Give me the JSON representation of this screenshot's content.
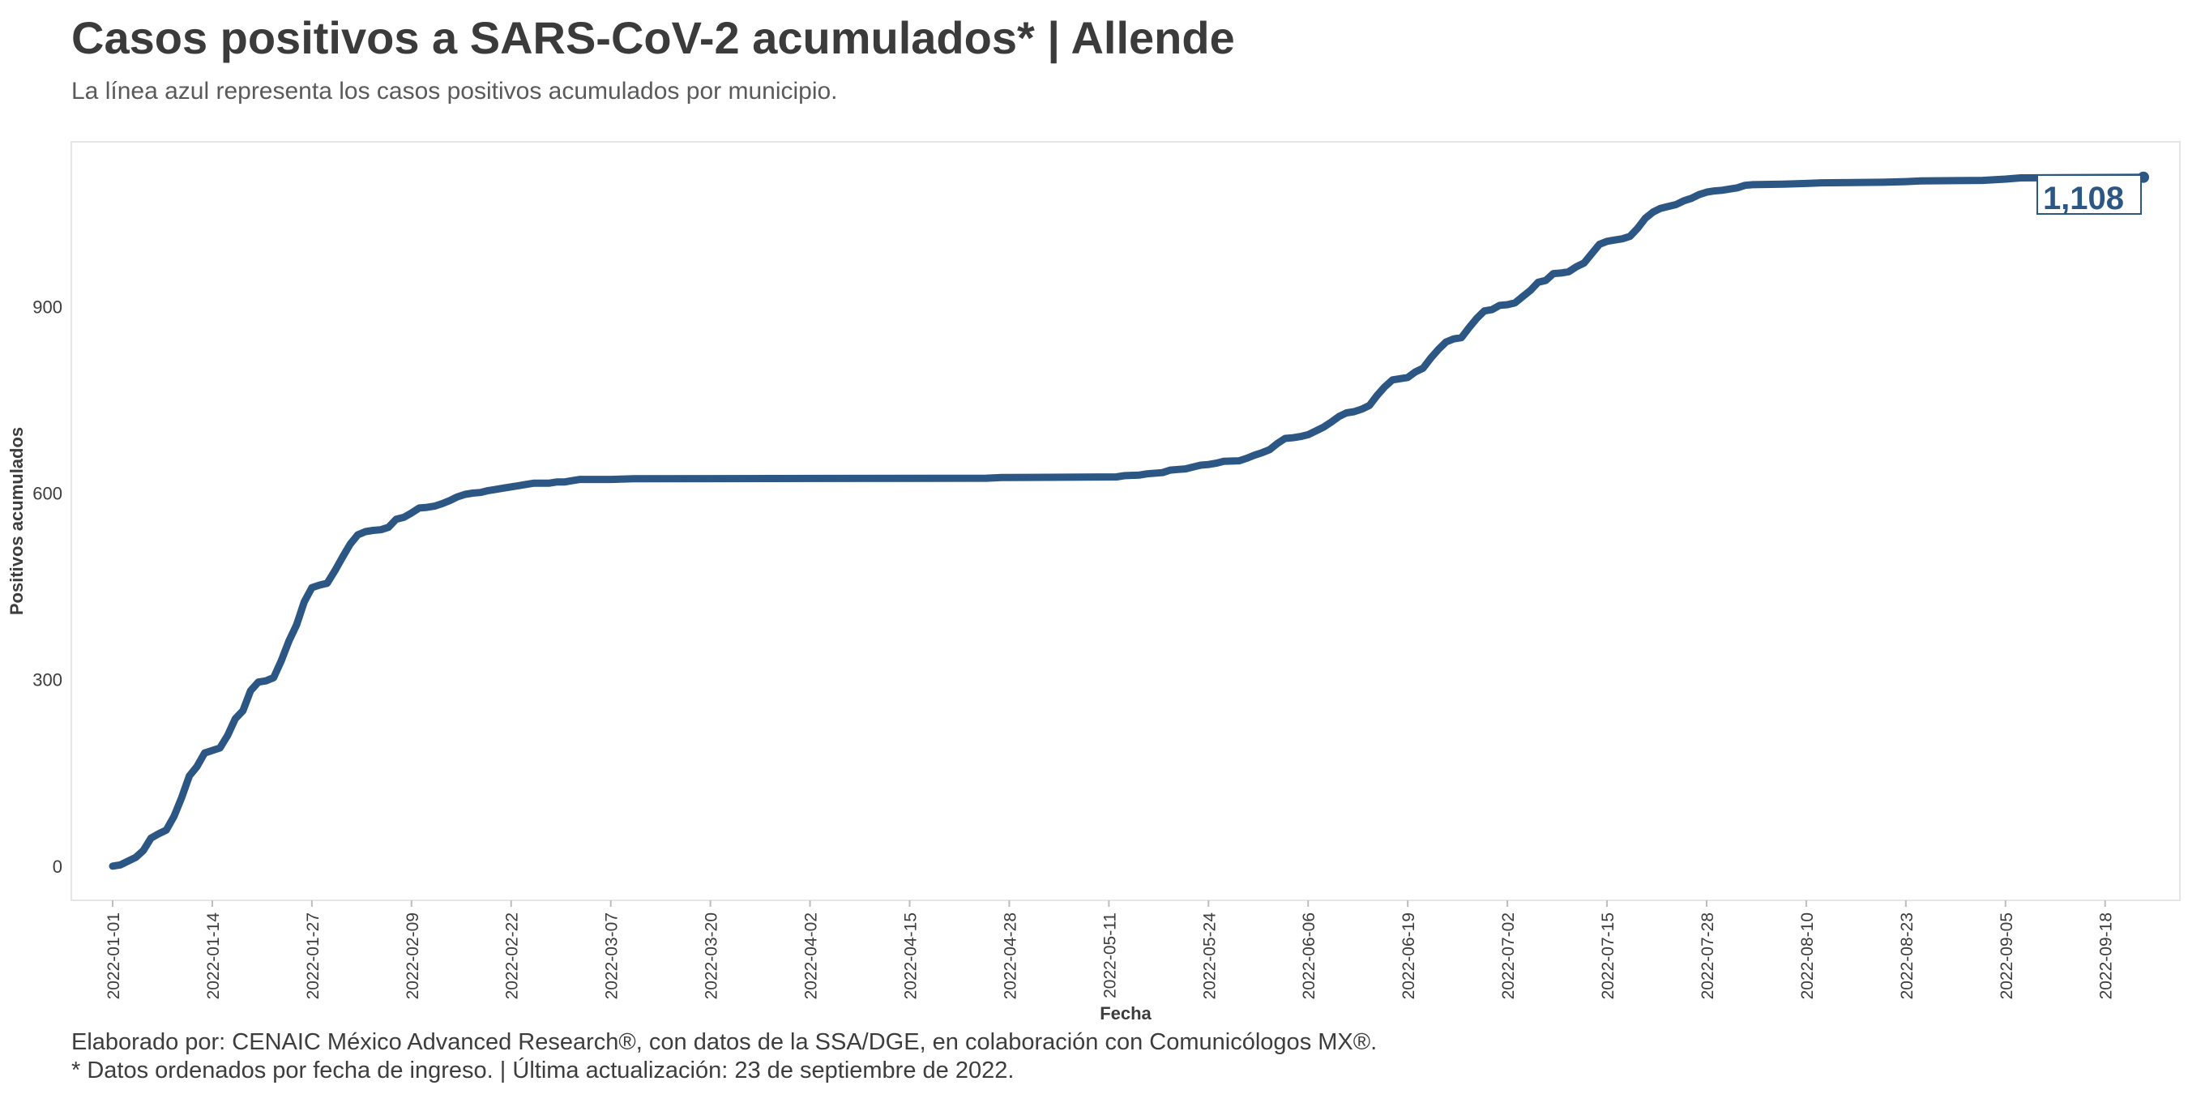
{
  "header": {
    "title": "Casos positivos a SARS-CoV-2 acumulados* | Allende",
    "subtitle": "La línea azul representa los casos positivos acumulados por municipio."
  },
  "footer": {
    "line1": "Elaborado por: CENAIC México Advanced Research®, con datos de la SSA/DGE, en colaboración con Comunicólogos MX®.",
    "line2": "* Datos ordenados por fecha de ingreso. | Última actualización: 23 de septiembre de 2022."
  },
  "colors": {
    "line": "#2c5784",
    "grid_border": "#e6e6e6",
    "text": "#3d3d3d"
  },
  "chart_data": {
    "type": "line",
    "xlabel": "Fecha",
    "ylabel": "Positivos acumulados",
    "x_start": "2022-01-01",
    "x_end": "2022-09-23",
    "ylim": [
      -55,
      1165
    ],
    "yticks": [
      0,
      300,
      600,
      900
    ],
    "ytick_labels": [
      "0",
      "300",
      "600",
      "900"
    ],
    "xticks": [
      "2022-01-01",
      "2022-01-14",
      "2022-01-27",
      "2022-02-09",
      "2022-02-22",
      "2022-03-07",
      "2022-03-20",
      "2022-04-02",
      "2022-04-15",
      "2022-04-28",
      "2022-05-11",
      "2022-05-24",
      "2022-06-06",
      "2022-06-19",
      "2022-07-02",
      "2022-07-15",
      "2022-07-28",
      "2022-08-10",
      "2022-08-23",
      "2022-09-05",
      "2022-09-18"
    ],
    "grid": false,
    "end_label": "1,108",
    "series": [
      {
        "values": [
          [
            "2022-01-01",
            0
          ],
          [
            "2022-01-02",
            2
          ],
          [
            "2022-01-03",
            8
          ],
          [
            "2022-01-04",
            14
          ],
          [
            "2022-01-05",
            25
          ],
          [
            "2022-01-06",
            45
          ],
          [
            "2022-01-07",
            52
          ],
          [
            "2022-01-08",
            58
          ],
          [
            "2022-01-09",
            80
          ],
          [
            "2022-01-10",
            110
          ],
          [
            "2022-01-11",
            145
          ],
          [
            "2022-01-12",
            160
          ],
          [
            "2022-01-13",
            182
          ],
          [
            "2022-01-14",
            186
          ],
          [
            "2022-01-15",
            190
          ],
          [
            "2022-01-16",
            210
          ],
          [
            "2022-01-17",
            237
          ],
          [
            "2022-01-18",
            250
          ],
          [
            "2022-01-19",
            282
          ],
          [
            "2022-01-20",
            296
          ],
          [
            "2022-01-21",
            298
          ],
          [
            "2022-01-22",
            303
          ],
          [
            "2022-01-23",
            330
          ],
          [
            "2022-01-24",
            362
          ],
          [
            "2022-01-25",
            388
          ],
          [
            "2022-01-26",
            425
          ],
          [
            "2022-01-27",
            448
          ],
          [
            "2022-01-28",
            452
          ],
          [
            "2022-01-29",
            455
          ],
          [
            "2022-01-30",
            475
          ],
          [
            "2022-01-31",
            497
          ],
          [
            "2022-02-01",
            518
          ],
          [
            "2022-02-02",
            533
          ],
          [
            "2022-02-03",
            538
          ],
          [
            "2022-02-04",
            540
          ],
          [
            "2022-02-05",
            541
          ],
          [
            "2022-02-06",
            545
          ],
          [
            "2022-02-07",
            558
          ],
          [
            "2022-02-08",
            561
          ],
          [
            "2022-02-09",
            568
          ],
          [
            "2022-02-10",
            576
          ],
          [
            "2022-02-11",
            577
          ],
          [
            "2022-02-12",
            579
          ],
          [
            "2022-02-13",
            583
          ],
          [
            "2022-02-14",
            588
          ],
          [
            "2022-02-15",
            594
          ],
          [
            "2022-02-16",
            598
          ],
          [
            "2022-02-17",
            600
          ],
          [
            "2022-02-18",
            601
          ],
          [
            "2022-02-19",
            604
          ],
          [
            "2022-02-20",
            606
          ],
          [
            "2022-02-21",
            608
          ],
          [
            "2022-02-22",
            610
          ],
          [
            "2022-02-23",
            612
          ],
          [
            "2022-02-24",
            614
          ],
          [
            "2022-02-25",
            616
          ],
          [
            "2022-02-26",
            616
          ],
          [
            "2022-02-27",
            616
          ],
          [
            "2022-02-28",
            618
          ],
          [
            "2022-03-01",
            618
          ],
          [
            "2022-03-02",
            620
          ],
          [
            "2022-03-03",
            622
          ],
          [
            "2022-03-07",
            622
          ],
          [
            "2022-03-10",
            623
          ],
          [
            "2022-04-25",
            624
          ],
          [
            "2022-04-27",
            625
          ],
          [
            "2022-05-12",
            626
          ],
          [
            "2022-05-13",
            628
          ],
          [
            "2022-05-15",
            629
          ],
          [
            "2022-05-16",
            631
          ],
          [
            "2022-05-18",
            633
          ],
          [
            "2022-05-19",
            637
          ],
          [
            "2022-05-20",
            638
          ],
          [
            "2022-05-21",
            639
          ],
          [
            "2022-05-22",
            642
          ],
          [
            "2022-05-23",
            645
          ],
          [
            "2022-05-24",
            646
          ],
          [
            "2022-05-25",
            648
          ],
          [
            "2022-05-26",
            651
          ],
          [
            "2022-05-28",
            652
          ],
          [
            "2022-05-29",
            656
          ],
          [
            "2022-05-30",
            661
          ],
          [
            "2022-05-31",
            665
          ],
          [
            "2022-06-01",
            670
          ],
          [
            "2022-06-02",
            680
          ],
          [
            "2022-06-03",
            688
          ],
          [
            "2022-06-04",
            689
          ],
          [
            "2022-06-05",
            691
          ],
          [
            "2022-06-06",
            694
          ],
          [
            "2022-06-07",
            700
          ],
          [
            "2022-06-08",
            706
          ],
          [
            "2022-06-09",
            714
          ],
          [
            "2022-06-10",
            723
          ],
          [
            "2022-06-11",
            729
          ],
          [
            "2022-06-12",
            731
          ],
          [
            "2022-06-13",
            735
          ],
          [
            "2022-06-14",
            741
          ],
          [
            "2022-06-15",
            757
          ],
          [
            "2022-06-16",
            771
          ],
          [
            "2022-06-17",
            782
          ],
          [
            "2022-06-18",
            784
          ],
          [
            "2022-06-19",
            786
          ],
          [
            "2022-06-20",
            795
          ],
          [
            "2022-06-21",
            801
          ],
          [
            "2022-06-22",
            817
          ],
          [
            "2022-06-23",
            831
          ],
          [
            "2022-06-24",
            843
          ],
          [
            "2022-06-25",
            848
          ],
          [
            "2022-06-26",
            850
          ],
          [
            "2022-06-27",
            866
          ],
          [
            "2022-06-28",
            881
          ],
          [
            "2022-06-29",
            893
          ],
          [
            "2022-06-30",
            895
          ],
          [
            "2022-07-01",
            902
          ],
          [
            "2022-07-02",
            903
          ],
          [
            "2022-07-03",
            906
          ],
          [
            "2022-07-04",
            916
          ],
          [
            "2022-07-05",
            926
          ],
          [
            "2022-07-06",
            939
          ],
          [
            "2022-07-07",
            942
          ],
          [
            "2022-07-08",
            953
          ],
          [
            "2022-07-09",
            954
          ],
          [
            "2022-07-10",
            956
          ],
          [
            "2022-07-11",
            964
          ],
          [
            "2022-07-12",
            970
          ],
          [
            "2022-07-13",
            985
          ],
          [
            "2022-07-14",
            1000
          ],
          [
            "2022-07-15",
            1005
          ],
          [
            "2022-07-16",
            1007
          ],
          [
            "2022-07-17",
            1009
          ],
          [
            "2022-07-18",
            1013
          ],
          [
            "2022-07-19",
            1026
          ],
          [
            "2022-07-20",
            1042
          ],
          [
            "2022-07-21",
            1052
          ],
          [
            "2022-07-22",
            1058
          ],
          [
            "2022-07-23",
            1061
          ],
          [
            "2022-07-24",
            1064
          ],
          [
            "2022-07-25",
            1070
          ],
          [
            "2022-07-26",
            1074
          ],
          [
            "2022-07-27",
            1080
          ],
          [
            "2022-07-28",
            1084
          ],
          [
            "2022-07-29",
            1086
          ],
          [
            "2022-07-30",
            1087
          ],
          [
            "2022-07-31",
            1089
          ],
          [
            "2022-08-01",
            1091
          ],
          [
            "2022-08-02",
            1095
          ],
          [
            "2022-08-03",
            1096
          ],
          [
            "2022-08-07",
            1097
          ],
          [
            "2022-08-10",
            1098
          ],
          [
            "2022-08-12",
            1099
          ],
          [
            "2022-08-20",
            1100
          ],
          [
            "2022-08-23",
            1101
          ],
          [
            "2022-08-25",
            1102
          ],
          [
            "2022-09-02",
            1103
          ],
          [
            "2022-09-05",
            1105
          ],
          [
            "2022-09-07",
            1107
          ],
          [
            "2022-09-23",
            1108
          ]
        ]
      }
    ]
  }
}
